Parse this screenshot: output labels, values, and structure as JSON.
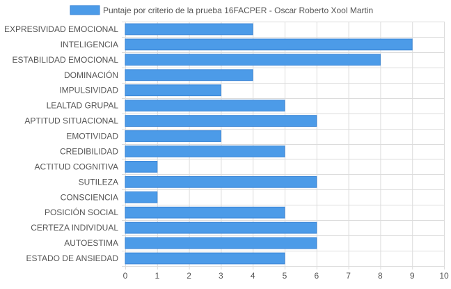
{
  "colors": {
    "bar_fill": "#4C9BE8",
    "bar_stroke": "#3A85D6",
    "grid": "#dcdcdc",
    "text": "#555555"
  },
  "chart_data": {
    "type": "bar",
    "orientation": "horizontal",
    "legend": {
      "position": "top",
      "label": "Puntaje por criterio de la prueba 16FACPER - Oscar Roberto Xool Martin"
    },
    "categories": [
      "EXPRESIVIDAD EMOCIONAL",
      "INTELIGENCIA",
      "ESTABILIDAD EMOCIONAL",
      "DOMINACIÓN",
      "IMPULSIVIDAD",
      "LEALTAD GRUPAL",
      "APTITUD SITUACIONAL",
      "EMOTIVIDAD",
      "CREDIBILIDAD",
      "ACTITUD COGNITIVA",
      "SUTILEZA",
      "CONSCIENCIA",
      "POSICIÓN SOCIAL",
      "CERTEZA INDIVIDUAL",
      "AUTOESTIMA",
      "ESTADO DE ANSIEDAD"
    ],
    "series": [
      {
        "name": "Puntaje por criterio de la prueba 16FACPER - Oscar Roberto Xool Martin",
        "values": [
          4,
          9,
          8,
          4,
          3,
          5,
          6,
          3,
          5,
          1,
          6,
          1,
          5,
          6,
          6,
          5
        ]
      }
    ],
    "xlim": [
      0,
      10
    ],
    "xticks": [
      0,
      1,
      2,
      3,
      4,
      5,
      6,
      7,
      8,
      9,
      10
    ],
    "grid": true
  }
}
